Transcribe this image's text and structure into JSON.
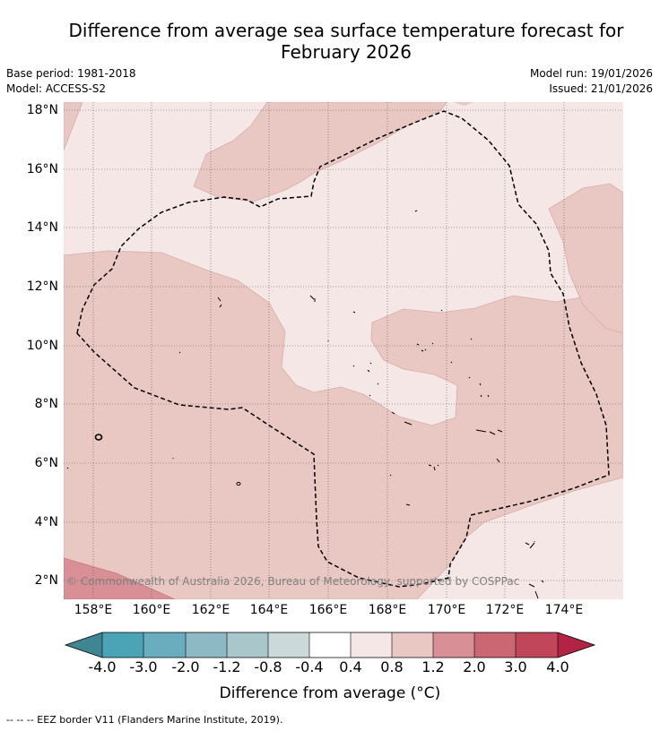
{
  "title_line1": "Difference from average sea surface temperature forecast for",
  "title_line2": "February 2026",
  "base_period": "Base period: 1981-2018",
  "model": "Model: ACCESS-S2",
  "model_run": "Model run: 19/01/2026",
  "issued": "Issued: 21/01/2026",
  "map": {
    "lat_labels": [
      "18°N",
      "16°N",
      "14°N",
      "12°N",
      "10°N",
      "8°N",
      "6°N",
      "4°N",
      "2°N"
    ],
    "lon_labels": [
      "158°E",
      "160°E",
      "162°E",
      "164°E",
      "166°E",
      "168°E",
      "170°E",
      "172°E",
      "174°E"
    ],
    "credit": "© Commonwealth of Australia 2026, Bureau of Meteorology, supported by COSPPac"
  },
  "colorbar": {
    "labels": [
      "-4.0",
      "-3.0",
      "-2.0",
      "-1.2",
      "-0.8",
      "-0.4",
      "0.4",
      "0.8",
      "1.2",
      "2.0",
      "3.0",
      "4.0"
    ],
    "colors": [
      "#3f8592",
      "#4aa4b6",
      "#69adbf",
      "#8cb9c4",
      "#a9c7ca",
      "#cbd9da",
      "#ffffff",
      "#f5e7e6",
      "#e9c7c3",
      "#d88f95",
      "#cb6673",
      "#c2465a",
      "#b22346"
    ],
    "title": "Difference from average (°C)"
  },
  "footnote": "--  --  -- EEZ border V11 (Flanders Marine Institute, 2019)."
}
